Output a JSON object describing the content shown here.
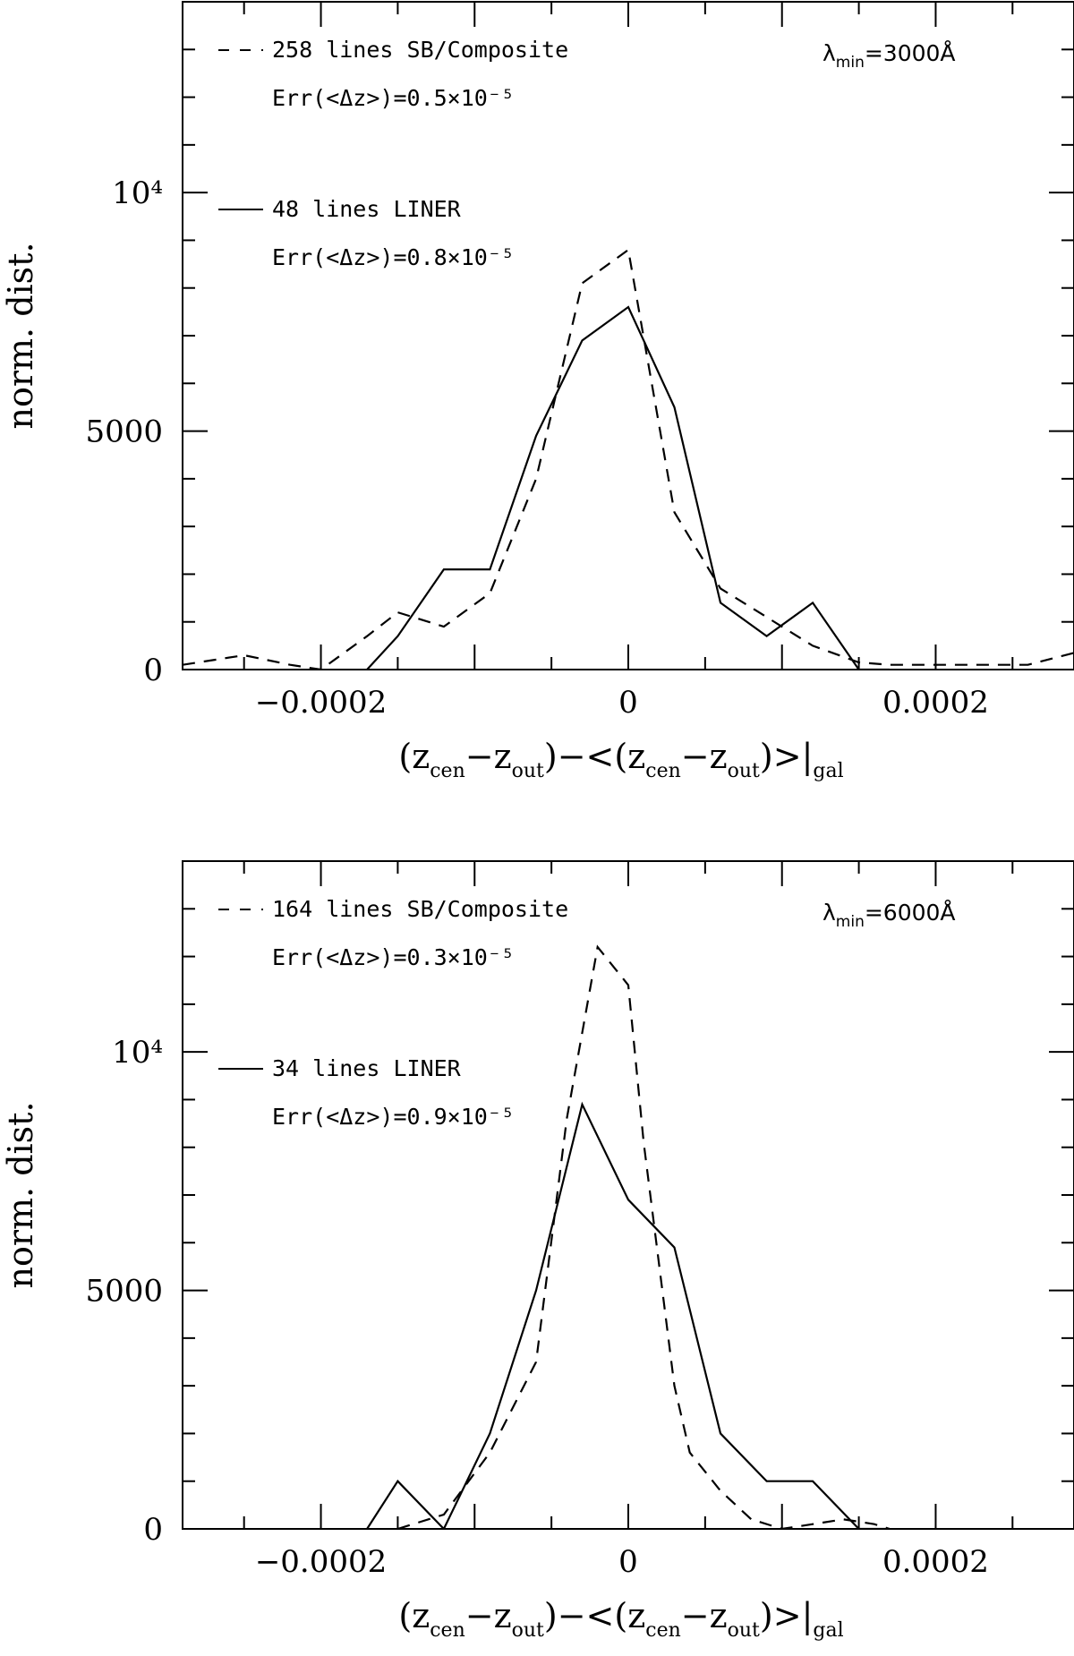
{
  "chart_data": [
    {
      "type": "line",
      "panel": "top",
      "xlim": [
        -0.00029,
        0.00029
      ],
      "ylim": [
        0,
        14000
      ],
      "xticks": [
        -0.0002,
        0,
        0.0002
      ],
      "xtick_labels": [
        "−0.0002",
        "0",
        "0.0002"
      ],
      "yticks": [
        0,
        5000,
        10000
      ],
      "ytick_labels": [
        "0",
        "5000",
        "10⁴"
      ],
      "ylabel": "norm. dist.",
      "xlabel": "(z_cen−z_out)−<(z_cen−z_out)>|_gal",
      "annotation": "λ_min=3000Å",
      "series": [
        {
          "name": "258 lines SB/Composite",
          "style": "dashed",
          "err": "Err(<Δz>)=0.5×10⁻⁵",
          "x": [
            -0.00029,
            -0.00025,
            -0.00022,
            -0.0002,
            -0.00017,
            -0.00015,
            -0.00012,
            -9e-05,
            -6e-05,
            -3e-05,
            0.0,
            3e-05,
            6e-05,
            9e-05,
            0.00012,
            0.00015,
            0.00017,
            0.0002,
            0.00024,
            0.00026,
            0.00029
          ],
          "y": [
            100,
            300,
            100,
            0,
            700,
            1200,
            900,
            1600,
            4000,
            8100,
            8800,
            3300,
            1700,
            1100,
            500,
            150,
            100,
            100,
            100,
            100,
            350
          ]
        },
        {
          "name": "48 lines LINER",
          "style": "solid",
          "err": "Err(<Δz>)=0.8×10⁻⁵",
          "x": [
            -0.00017,
            -0.00015,
            -0.00012,
            -9e-05,
            -6e-05,
            -3e-05,
            0.0,
            3e-05,
            6e-05,
            9e-05,
            0.00012,
            0.00015,
            0.00017
          ],
          "y": [
            0,
            700,
            2100,
            2100,
            4900,
            6900,
            7600,
            5500,
            1400,
            700,
            1400,
            0,
            0
          ]
        }
      ]
    },
    {
      "type": "line",
      "panel": "bottom",
      "xlim": [
        -0.00029,
        0.00029
      ],
      "ylim": [
        0,
        14000
      ],
      "xticks": [
        -0.0002,
        0,
        0.0002
      ],
      "xtick_labels": [
        "−0.0002",
        "0",
        "0.0002"
      ],
      "yticks": [
        0,
        5000,
        10000
      ],
      "ytick_labels": [
        "0",
        "5000",
        "10⁴"
      ],
      "ylabel": "norm. dist.",
      "xlabel": "(z_cen−z_out)−<(z_cen−z_out)>|_gal",
      "annotation": "λ_min=6000Å",
      "series": [
        {
          "name": "164 lines SB/Composite",
          "style": "dashed",
          "err": "Err(<Δz>)=0.3×10⁻⁵",
          "x": [
            -0.00015,
            -0.00012,
            -9e-05,
            -6e-05,
            -4e-05,
            -2e-05,
            0.0,
            1e-05,
            3e-05,
            4e-05,
            6e-05,
            8e-05,
            0.0001,
            0.00012,
            0.00014,
            0.00016,
            0.00017
          ],
          "y": [
            0,
            300,
            1600,
            3500,
            8600,
            12200,
            11400,
            8100,
            3000,
            1600,
            800,
            200,
            0,
            100,
            200,
            100,
            0
          ]
        },
        {
          "name": "34 lines LINER",
          "style": "solid",
          "err": "Err(<Δz>)=0.9×10⁻⁵",
          "x": [
            -0.00017,
            -0.00015,
            -0.00012,
            -9e-05,
            -6e-05,
            -3e-05,
            0.0,
            3e-05,
            6e-05,
            9e-05,
            0.00012,
            0.00015,
            0.00017
          ],
          "y": [
            0,
            1000,
            0,
            2000,
            5000,
            8900,
            6900,
            5900,
            2000,
            1000,
            1000,
            0,
            0
          ]
        }
      ]
    }
  ],
  "labels": {
    "sub_cen": "cen",
    "sub_out": "out",
    "sub_gal": "gal",
    "sub_min": "min",
    "xlabel_parts": {
      "open1": "(z",
      "minus1": "−z",
      "close1": ")−<(z",
      "minus2": "−z",
      "close2": ")>|"
    },
    "lambda_top": "=3000Å",
    "lambda_bottom": "=6000Å",
    "lambda_symbol": "λ"
  }
}
